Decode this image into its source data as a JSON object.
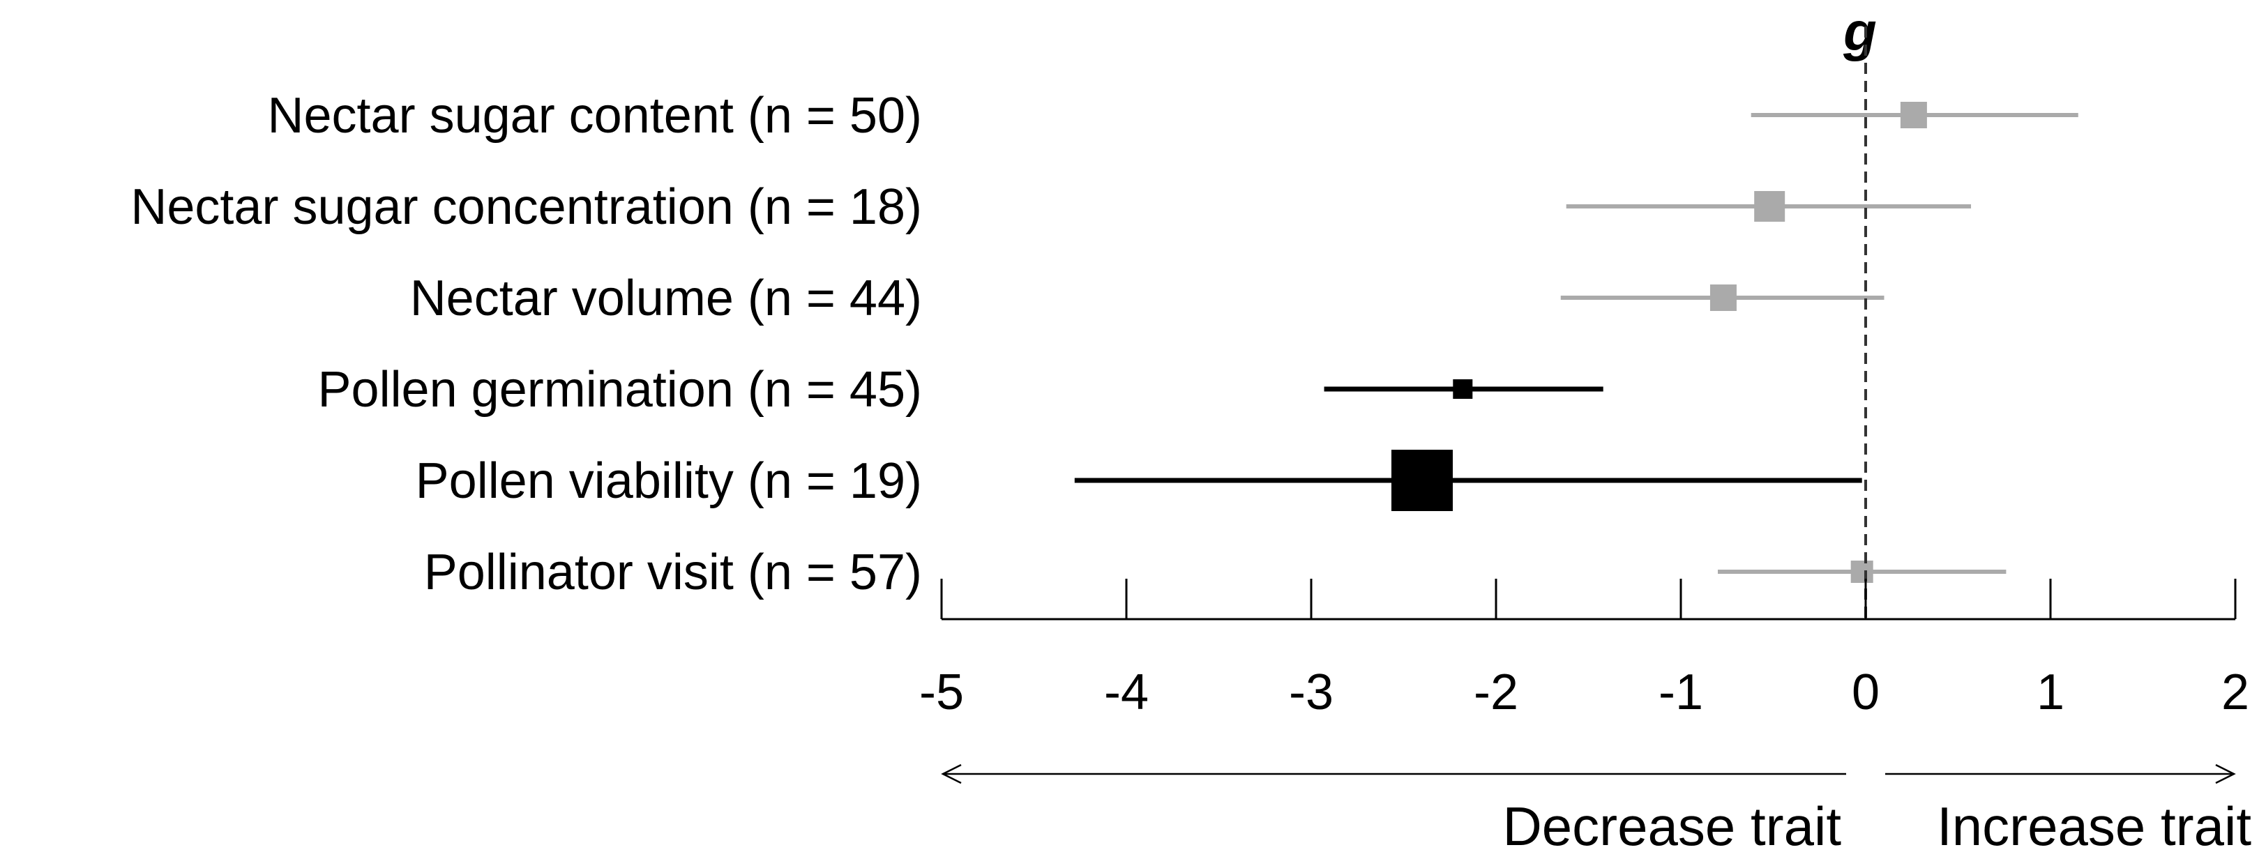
{
  "chart_data": {
    "type": "scatter",
    "subtype": "forest-plot",
    "axis_title": "g",
    "x_ticks": [
      -5,
      -4,
      -3,
      -2,
      -1,
      0,
      1,
      2
    ],
    "x_tick_labels": [
      "-5",
      "-4",
      "-3",
      "-2",
      "-1",
      "0",
      "1",
      "2"
    ],
    "xlim": [
      -5,
      2
    ],
    "reference_line": 0,
    "direction_labels": {
      "left": "Decrease trait",
      "right": "Increase trait"
    },
    "colors": {
      "significant": "#000000",
      "nonsignificant": "#aaaaaa"
    },
    "rows": [
      {
        "label": "Nectar sugar content (n = 50)",
        "estimate": 0.26,
        "ci_low": -0.62,
        "ci_high": 1.15,
        "n": 50,
        "significant": false
      },
      {
        "label": "Nectar sugar concentration (n = 18)",
        "estimate": -0.52,
        "ci_low": -1.62,
        "ci_high": 0.57,
        "n": 18,
        "significant": false
      },
      {
        "label": "Nectar volume (n = 44)",
        "estimate": -0.77,
        "ci_low": -1.65,
        "ci_high": 0.1,
        "n": 44,
        "significant": false
      },
      {
        "label": "Pollen germination (n = 45)",
        "estimate": -2.18,
        "ci_low": -2.93,
        "ci_high": -1.42,
        "n": 45,
        "significant": true
      },
      {
        "label": "Pollen viability (n = 19)",
        "estimate": -2.4,
        "ci_low": -4.28,
        "ci_high": -0.02,
        "n": 19,
        "significant": true
      },
      {
        "label": "Pollinator visit (n = 57)",
        "estimate": -0.02,
        "ci_low": -0.8,
        "ci_high": 0.76,
        "n": 57,
        "significant": false
      }
    ]
  }
}
